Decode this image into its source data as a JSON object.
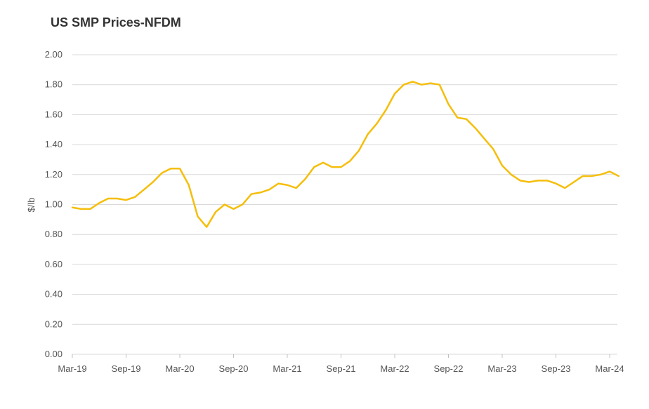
{
  "chart_data": {
    "type": "line",
    "title": "US SMP Prices-NFDM",
    "xlabel": "",
    "ylabel": "$/lb",
    "ylim": [
      0,
      2.0
    ],
    "yticks": [
      "0.00",
      "0.20",
      "0.40",
      "0.60",
      "0.80",
      "1.00",
      "1.20",
      "1.40",
      "1.60",
      "1.80",
      "2.00"
    ],
    "xticks": [
      "Mar-19",
      "Sep-19",
      "Mar-20",
      "Sep-20",
      "Mar-21",
      "Sep-21",
      "Mar-22",
      "Sep-22",
      "Mar-23",
      "Sep-23",
      "Mar-24"
    ],
    "grid": true,
    "colors": {
      "line": "#F5BE0B",
      "grid": "#d9d9d9"
    },
    "x": [
      "Mar-19",
      "Apr-19",
      "May-19",
      "Jun-19",
      "Jul-19",
      "Aug-19",
      "Sep-19",
      "Oct-19",
      "Nov-19",
      "Dec-19",
      "Jan-20",
      "Feb-20",
      "Mar-20",
      "Apr-20",
      "May-20",
      "Jun-20",
      "Jul-20",
      "Aug-20",
      "Sep-20",
      "Oct-20",
      "Nov-20",
      "Dec-20",
      "Jan-21",
      "Feb-21",
      "Mar-21",
      "Apr-21",
      "May-21",
      "Jun-21",
      "Jul-21",
      "Aug-21",
      "Sep-21",
      "Oct-21",
      "Nov-21",
      "Dec-21",
      "Jan-22",
      "Feb-22",
      "Mar-22",
      "Apr-22",
      "May-22",
      "Jun-22",
      "Jul-22",
      "Aug-22",
      "Sep-22",
      "Oct-22",
      "Nov-22",
      "Dec-22",
      "Jan-23",
      "Feb-23",
      "Mar-23",
      "Apr-23",
      "May-23",
      "Jun-23",
      "Jul-23",
      "Aug-23",
      "Sep-23",
      "Oct-23",
      "Nov-23",
      "Dec-23",
      "Jan-24",
      "Feb-24",
      "Mar-24",
      "Apr-24"
    ],
    "series": [
      {
        "values": [
          0.98,
          0.97,
          0.97,
          1.01,
          1.04,
          1.04,
          1.03,
          1.05,
          1.1,
          1.15,
          1.21,
          1.24,
          1.24,
          1.13,
          0.92,
          0.85,
          0.95,
          1.0,
          0.97,
          1.0,
          1.07,
          1.08,
          1.1,
          1.14,
          1.13,
          1.11,
          1.17,
          1.25,
          1.28,
          1.25,
          1.25,
          1.29,
          1.36,
          1.47,
          1.54,
          1.63,
          1.74,
          1.8,
          1.82,
          1.8,
          1.81,
          1.8,
          1.67,
          1.58,
          1.57,
          1.51,
          1.44,
          1.37,
          1.26,
          1.2,
          1.16,
          1.15,
          1.16,
          1.16,
          1.14,
          1.11,
          1.15,
          1.19,
          1.19,
          1.2,
          1.22,
          1.19
        ]
      }
    ]
  }
}
